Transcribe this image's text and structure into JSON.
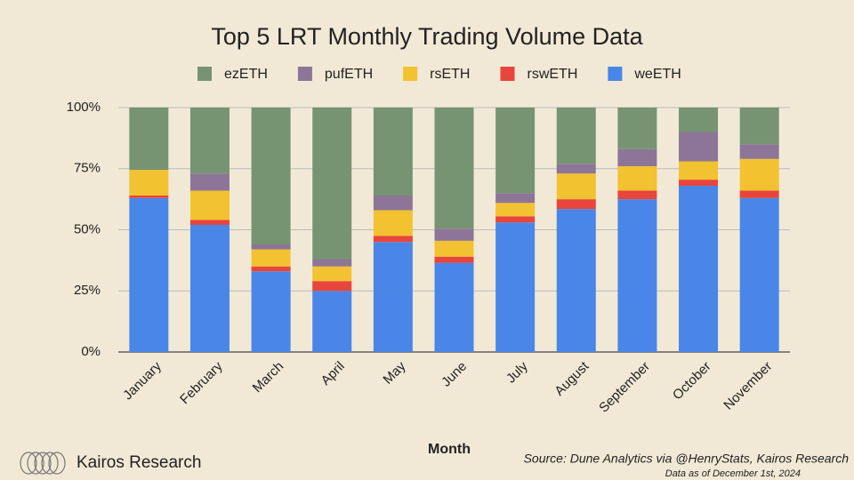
{
  "chart_data": {
    "type": "stacked_bar",
    "title": "Top 5 LRT Monthly Trading Volume Data",
    "x_label": "Month",
    "source": "Source: Dune Analytics via @HenryStats, Kairos Research",
    "note": "Data as of December 1st, 2024",
    "brand": "Kairos Research",
    "categories": [
      "January",
      "February",
      "March",
      "April",
      "May",
      "June",
      "July",
      "August",
      "September",
      "October",
      "November"
    ],
    "series": [
      {
        "name": "ezETH",
        "color": "#769472",
        "values": [
          25.5,
          27,
          56,
          62,
          36,
          49.5,
          35,
          23,
          17,
          10,
          15
        ]
      },
      {
        "name": "pufETH",
        "color": "#8d7597",
        "values": [
          0,
          7,
          2,
          3,
          6,
          5,
          4,
          4,
          7,
          12,
          6
        ]
      },
      {
        "name": "rsETH",
        "color": "#f2c230",
        "values": [
          10.5,
          12,
          7,
          6,
          10.5,
          6.5,
          5.5,
          10.5,
          10,
          7.5,
          13
        ]
      },
      {
        "name": "rswETH",
        "color": "#e8453c",
        "values": [
          1,
          2,
          2,
          4,
          2.5,
          2.5,
          2.5,
          4,
          3.5,
          2.5,
          3
        ]
      },
      {
        "name": "weETH",
        "color": "#4a86e8",
        "values": [
          63,
          52,
          33,
          25,
          45,
          36.5,
          53,
          58.5,
          62.5,
          68,
          63
        ]
      }
    ],
    "ylim": [
      0,
      100
    ],
    "yticks": [
      {
        "value": 0,
        "label": "0%"
      },
      {
        "value": 25,
        "label": "25%"
      },
      {
        "value": 50,
        "label": "50%"
      },
      {
        "value": 75,
        "label": "75%"
      },
      {
        "value": 100,
        "label": "100%"
      }
    ],
    "grid": true
  }
}
